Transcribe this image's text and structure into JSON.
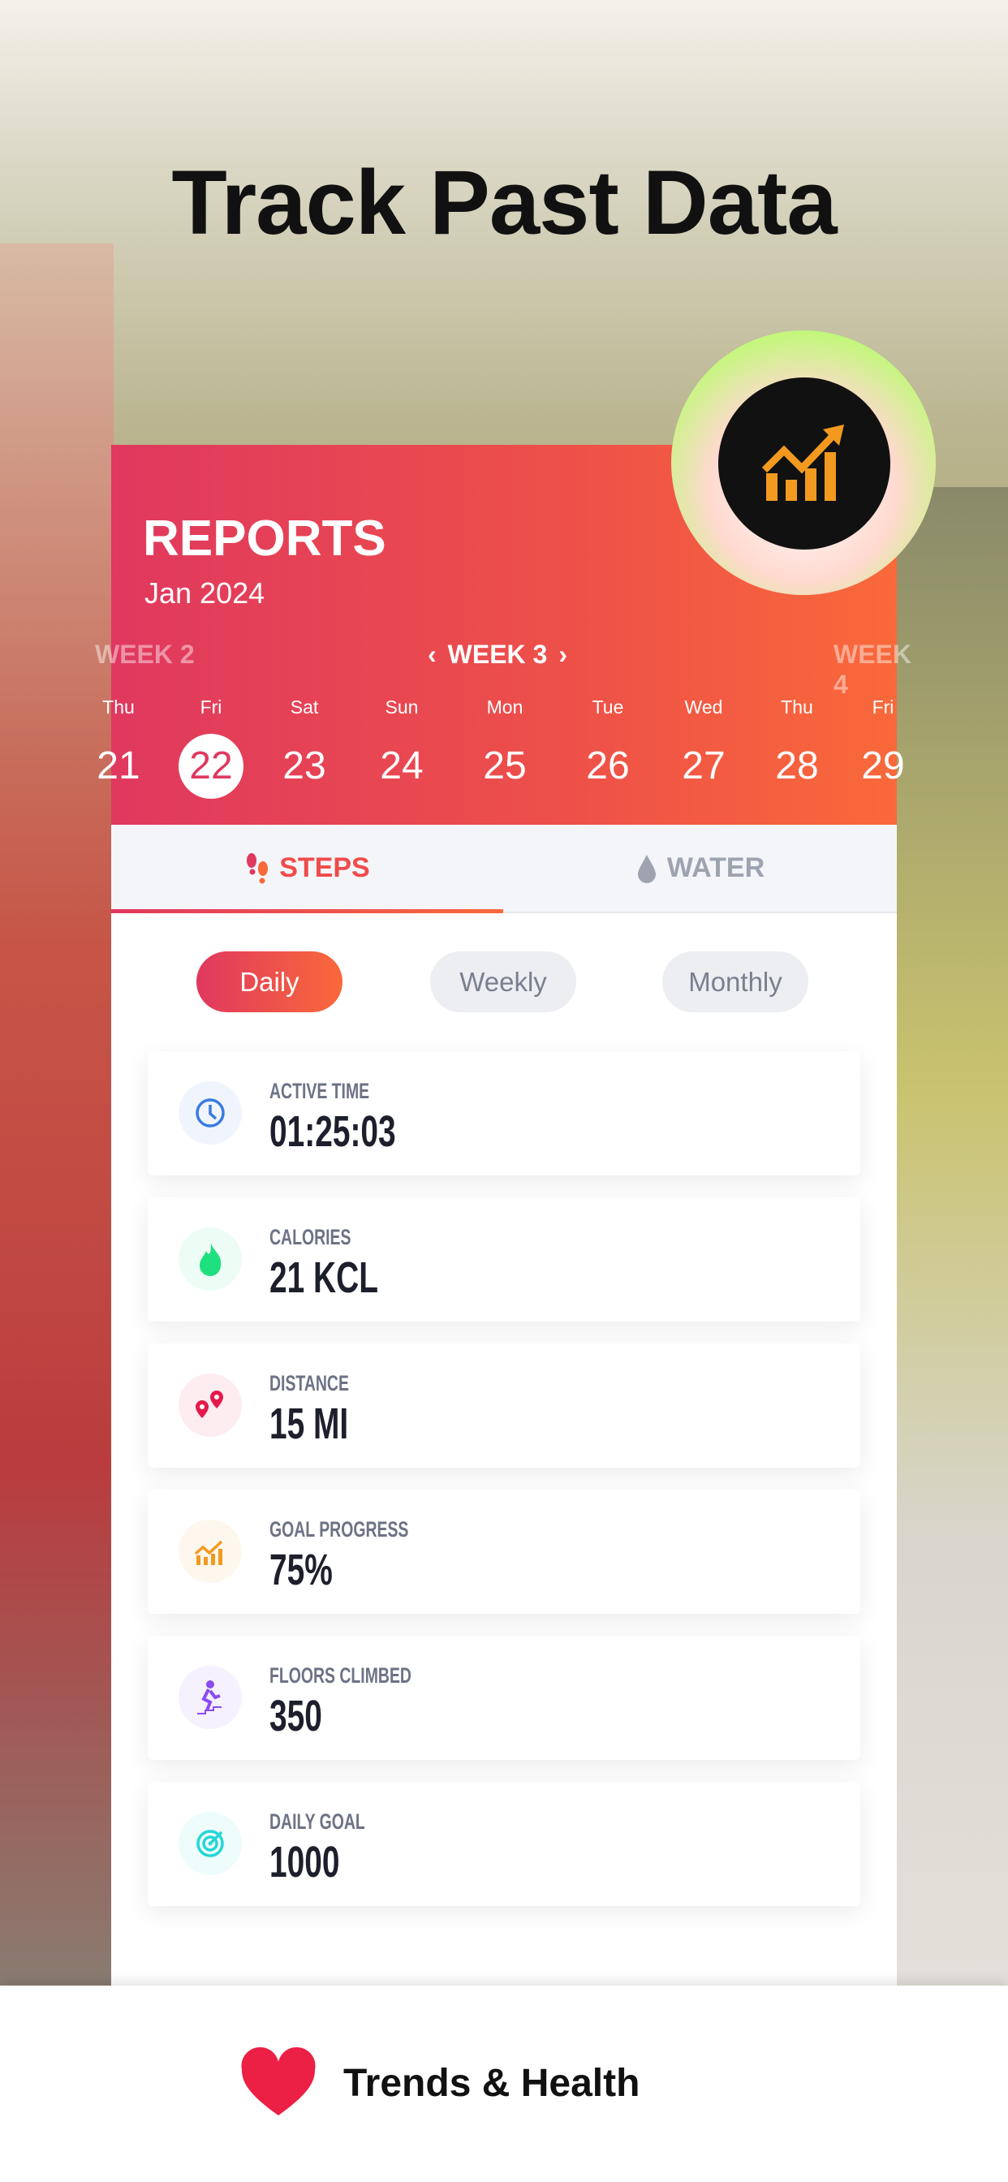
{
  "headline": "Track Past Data",
  "reports": {
    "title": "REPORTS",
    "month": "Jan 2024",
    "weeks": {
      "prev": "WEEK 2",
      "current": "WEEK 3",
      "next": "WEEK 4"
    },
    "days": [
      {
        "name": "Thu",
        "num": "21"
      },
      {
        "name": "Fri",
        "num": "22",
        "selected": true
      },
      {
        "name": "Sat",
        "num": "23"
      },
      {
        "name": "Sun",
        "num": "24"
      },
      {
        "name": "Mon",
        "num": "25"
      },
      {
        "name": "Tue",
        "num": "26"
      },
      {
        "name": "Wed",
        "num": "27"
      },
      {
        "name": "Thu",
        "num": "28"
      },
      {
        "name": "Fri",
        "num": "29"
      }
    ]
  },
  "tabs": [
    {
      "label": "STEPS",
      "active": true,
      "icon": "footsteps-icon"
    },
    {
      "label": "WATER",
      "icon": "water-drop-icon"
    }
  ],
  "periods": [
    {
      "label": "Daily",
      "active": true
    },
    {
      "label": "Weekly"
    },
    {
      "label": "Monthly"
    }
  ],
  "stats": [
    {
      "label": "ACTIVE TIME",
      "value": "01:25:03",
      "icon": "clock-icon",
      "color": "#3a7be0"
    },
    {
      "label": "CALORIES",
      "value": "21 KCL",
      "icon": "flame-icon",
      "color": "#1fe07f"
    },
    {
      "label": "DISTANCE",
      "value": "15 MI",
      "icon": "map-pins-icon",
      "color": "#e5194a"
    },
    {
      "label": "GOAL PROGRESS",
      "value": "75%",
      "icon": "trend-chart-icon",
      "color": "#f29a1f"
    },
    {
      "label": "FLOORS CLIMBED",
      "value": "350",
      "icon": "stairs-climber-icon",
      "color": "#8a4cf0"
    },
    {
      "label": "DAILY GOAL",
      "value": "1000",
      "icon": "target-icon",
      "color": "#25d6d6"
    }
  ],
  "footer": {
    "label": "Trends & Health",
    "icon": "heart-icon"
  },
  "colors": {
    "accent_start": "#e0385f",
    "accent_end": "#f9693a",
    "heart": "#ec1f45"
  }
}
